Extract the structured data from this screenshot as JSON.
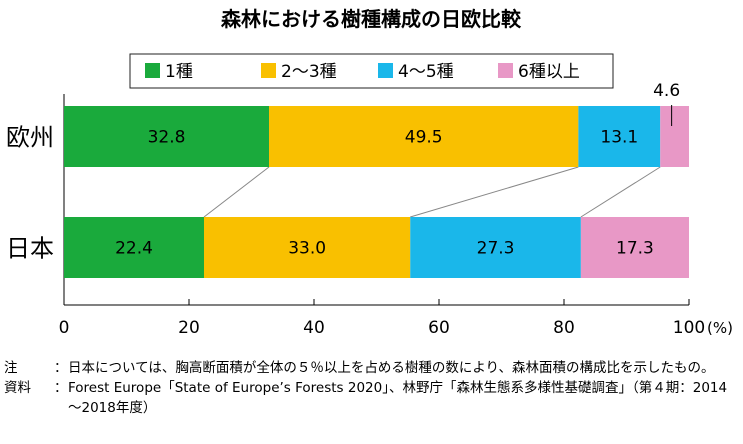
{
  "chart_data": {
    "type": "bar",
    "orientation": "horizontal",
    "stacked": true,
    "title": "森林における樹種構成の日欧比較",
    "categories": [
      "欧州",
      "日本"
    ],
    "series": [
      {
        "name": "1種",
        "color": "#1aaa3c",
        "values": [
          32.8,
          22.4
        ],
        "labels": [
          "32.8",
          "22.4"
        ]
      },
      {
        "name": "2～3種",
        "color": "#f9c000",
        "values": [
          49.5,
          33.0
        ],
        "labels": [
          "49.5",
          "33.0"
        ]
      },
      {
        "name": "4～5種",
        "color": "#1ab7ea",
        "values": [
          13.1,
          27.3
        ],
        "labels": [
          "13.1",
          "27.3"
        ]
      },
      {
        "name": "6種以上",
        "color": "#e898c6",
        "values": [
          4.6,
          17.3
        ],
        "labels": [
          "4.6",
          "17.3"
        ]
      }
    ],
    "xlim": [
      0,
      100
    ],
    "xticks": [
      "0",
      "20",
      "40",
      "60",
      "80",
      "100"
    ],
    "xunit": "(%)",
    "legend_position": "top",
    "grid": false
  },
  "notes": [
    {
      "key": "注",
      "sep": "：",
      "text": "日本については、胸高断面積が全体の５％以上を占める樹種の数により、森林面積の構成比を示したもの。"
    },
    {
      "key": "資料",
      "sep": "：",
      "text": "Forest Europe「State of Europe’s Forests 2020」、林野庁「森林生態系多様性基礎調査」（第４期：2014～2018年度）"
    }
  ]
}
